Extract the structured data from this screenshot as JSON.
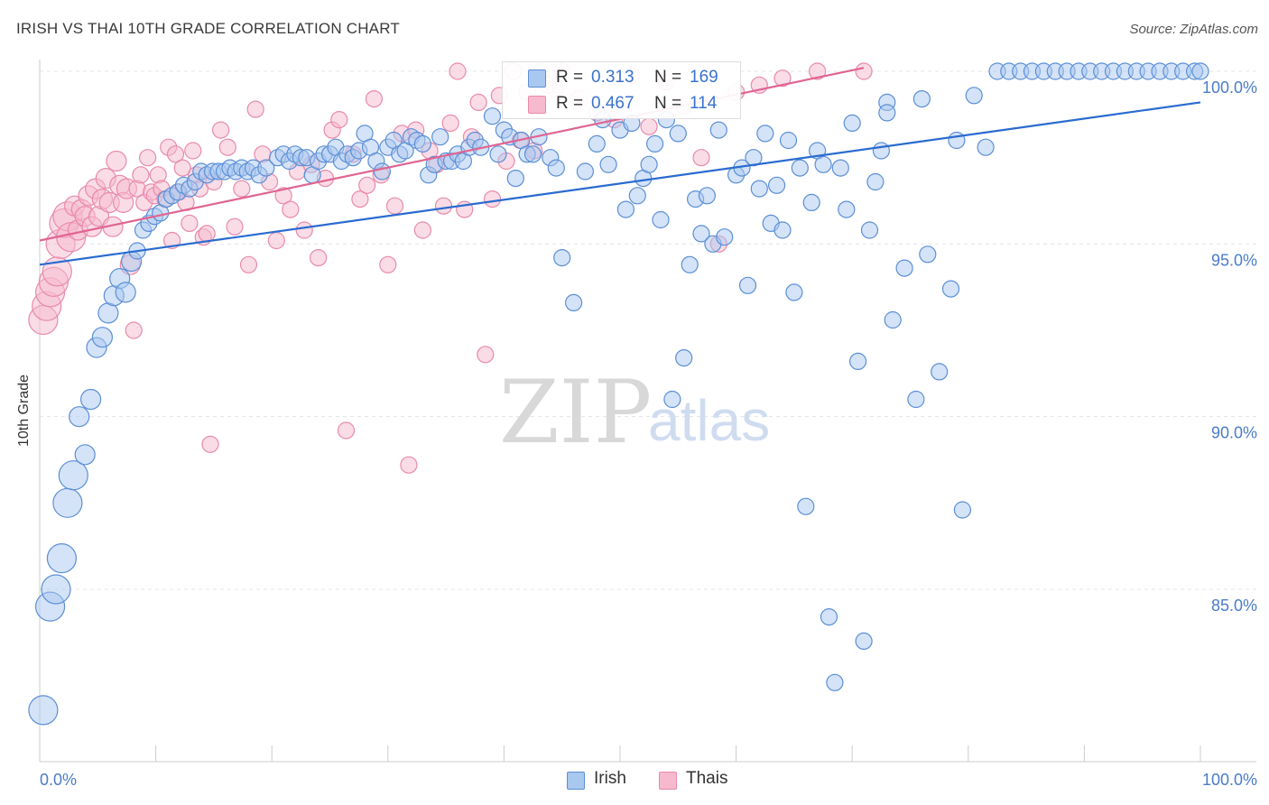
{
  "title": "IRISH VS THAI 10TH GRADE CORRELATION CHART",
  "source": "Source: ZipAtlas.com",
  "watermark": {
    "zip": "ZIP",
    "atlas": "atlas"
  },
  "colors": {
    "irish_fill": "#a9c8f0",
    "irish_stroke": "#5b8fd6",
    "irish_line": "#2a6bd0",
    "thai_fill": "#f6b9cd",
    "thai_stroke": "#e88aab",
    "thai_line": "#e06592",
    "grid": "#e4e4e4",
    "tick_text": "#4a7cc9"
  },
  "legend": {
    "rows": [
      {
        "series": "irish",
        "r_key": "R =",
        "r_value": "0.313",
        "n_key": "N =",
        "n_value": "169"
      },
      {
        "series": "thai",
        "r_key": "R =",
        "r_value": "0.467",
        "n_key": "N =",
        "n_value": "114"
      }
    ]
  },
  "chart_data": {
    "type": "scatter",
    "title": "IRISH VS THAI 10TH GRADE CORRELATION CHART",
    "xlabel": "",
    "ylabel": "10th Grade",
    "xlim": [
      0,
      100
    ],
    "ylim": [
      80.0,
      100.9
    ],
    "x_tick_labels": [
      "0.0%",
      "100.0%"
    ],
    "y_ticks": [
      {
        "value": 85,
        "label": "85.0%"
      },
      {
        "value": 90,
        "label": "90.0%"
      },
      {
        "value": 95,
        "label": "95.0%"
      },
      {
        "value": 100,
        "label": "100.0%"
      }
    ],
    "grid": true,
    "legend_position": "top-center",
    "series": [
      {
        "name": "Irish",
        "trend": {
          "x": [
            0,
            100
          ],
          "y": [
            94.4,
            99.1
          ]
        },
        "points": [
          [
            0.3,
            81.5
          ],
          [
            0.9,
            84.5
          ],
          [
            1.4,
            85.0
          ],
          [
            1.9,
            85.9
          ],
          [
            2.4,
            87.5
          ],
          [
            2.9,
            88.3
          ],
          [
            3.4,
            90.0
          ],
          [
            3.9,
            88.9
          ],
          [
            4.4,
            90.5
          ],
          [
            4.9,
            92.0
          ],
          [
            5.4,
            92.3
          ],
          [
            5.9,
            93.0
          ],
          [
            6.4,
            93.5
          ],
          [
            6.9,
            94.0
          ],
          [
            7.4,
            93.6
          ],
          [
            7.9,
            94.5
          ],
          [
            8.4,
            94.8
          ],
          [
            8.9,
            95.4
          ],
          [
            9.4,
            95.6
          ],
          [
            9.9,
            95.8
          ],
          [
            10.4,
            95.9
          ],
          [
            10.9,
            96.3
          ],
          [
            11.4,
            96.4
          ],
          [
            11.9,
            96.5
          ],
          [
            12.4,
            96.7
          ],
          [
            12.9,
            96.6
          ],
          [
            13.4,
            96.8
          ],
          [
            13.9,
            97.1
          ],
          [
            14.4,
            97.0
          ],
          [
            14.9,
            97.1
          ],
          [
            15.4,
            97.1
          ],
          [
            15.9,
            97.1
          ],
          [
            16.4,
            97.2
          ],
          [
            16.9,
            97.1
          ],
          [
            17.4,
            97.2
          ],
          [
            17.9,
            97.1
          ],
          [
            18.4,
            97.2
          ],
          [
            18.9,
            97.0
          ],
          [
            19.5,
            97.2
          ],
          [
            20.5,
            97.5
          ],
          [
            21.0,
            97.6
          ],
          [
            21.5,
            97.4
          ],
          [
            22.0,
            97.6
          ],
          [
            22.5,
            97.5
          ],
          [
            23.0,
            97.5
          ],
          [
            23.5,
            97.0
          ],
          [
            24.0,
            97.4
          ],
          [
            24.5,
            97.6
          ],
          [
            25.0,
            97.6
          ],
          [
            25.5,
            97.8
          ],
          [
            26.0,
            97.4
          ],
          [
            26.5,
            97.6
          ],
          [
            27.0,
            97.5
          ],
          [
            27.5,
            97.7
          ],
          [
            28.0,
            98.2
          ],
          [
            28.5,
            97.8
          ],
          [
            29.0,
            97.4
          ],
          [
            29.5,
            97.1
          ],
          [
            30.0,
            97.8
          ],
          [
            30.5,
            98.0
          ],
          [
            31.0,
            97.6
          ],
          [
            31.5,
            97.7
          ],
          [
            32.0,
            98.1
          ],
          [
            32.5,
            98.0
          ],
          [
            33.0,
            97.9
          ],
          [
            33.5,
            97.0
          ],
          [
            34.0,
            97.3
          ],
          [
            34.5,
            98.1
          ],
          [
            35.0,
            97.4
          ],
          [
            35.5,
            97.4
          ],
          [
            36.0,
            97.6
          ],
          [
            36.5,
            97.4
          ],
          [
            37.0,
            97.8
          ],
          [
            37.5,
            98.0
          ],
          [
            38.0,
            97.8
          ],
          [
            39.0,
            98.7
          ],
          [
            39.5,
            97.6
          ],
          [
            40.0,
            98.3
          ],
          [
            40.5,
            98.1
          ],
          [
            41.0,
            96.9
          ],
          [
            41.5,
            98.0
          ],
          [
            42.0,
            97.6
          ],
          [
            42.5,
            97.6
          ],
          [
            43.0,
            98.1
          ],
          [
            44.0,
            97.5
          ],
          [
            44.5,
            97.2
          ],
          [
            45.0,
            94.6
          ],
          [
            46.0,
            93.3
          ],
          [
            47.0,
            97.1
          ],
          [
            48.0,
            97.9
          ],
          [
            48.5,
            98.6
          ],
          [
            49.0,
            97.3
          ],
          [
            50.0,
            98.3
          ],
          [
            50.5,
            96.0
          ],
          [
            51.0,
            98.5
          ],
          [
            51.5,
            96.4
          ],
          [
            52.0,
            96.9
          ],
          [
            52.5,
            97.3
          ],
          [
            53.0,
            97.9
          ],
          [
            53.5,
            95.7
          ],
          [
            54.0,
            98.6
          ],
          [
            54.5,
            90.5
          ],
          [
            55.0,
            98.2
          ],
          [
            55.5,
            91.7
          ],
          [
            56.0,
            94.4
          ],
          [
            56.5,
            96.3
          ],
          [
            57.0,
            95.3
          ],
          [
            57.5,
            96.4
          ],
          [
            58.0,
            95.0
          ],
          [
            58.5,
            98.3
          ],
          [
            59.0,
            95.2
          ],
          [
            60.0,
            97.0
          ],
          [
            60.5,
            97.2
          ],
          [
            61.0,
            93.8
          ],
          [
            61.5,
            97.5
          ],
          [
            62.0,
            96.6
          ],
          [
            62.5,
            98.2
          ],
          [
            63.0,
            95.6
          ],
          [
            63.5,
            96.7
          ],
          [
            64.0,
            95.4
          ],
          [
            64.5,
            98.0
          ],
          [
            65.0,
            93.6
          ],
          [
            65.5,
            97.2
          ],
          [
            66.0,
            87.4
          ],
          [
            66.5,
            96.2
          ],
          [
            67.0,
            97.7
          ],
          [
            67.5,
            97.3
          ],
          [
            68.0,
            84.2
          ],
          [
            68.5,
            82.3
          ],
          [
            69.0,
            97.2
          ],
          [
            69.5,
            96.0
          ],
          [
            70.0,
            98.5
          ],
          [
            70.5,
            91.6
          ],
          [
            71.0,
            83.5
          ],
          [
            71.5,
            95.4
          ],
          [
            72.0,
            96.8
          ],
          [
            72.5,
            97.7
          ],
          [
            73.0,
            99.1
          ],
          [
            73.5,
            92.8
          ],
          [
            74.5,
            94.3
          ],
          [
            75.5,
            90.5
          ],
          [
            76.5,
            94.7
          ],
          [
            77.5,
            91.3
          ],
          [
            78.5,
            93.7
          ],
          [
            79.5,
            87.3
          ],
          [
            80.5,
            99.3
          ],
          [
            81.5,
            97.8
          ],
          [
            82.5,
            100.0
          ],
          [
            83.5,
            100.0
          ],
          [
            84.5,
            100.0
          ],
          [
            85.5,
            100.0
          ],
          [
            86.5,
            100.0
          ],
          [
            87.5,
            100.0
          ],
          [
            88.5,
            100.0
          ],
          [
            89.5,
            100.0
          ],
          [
            90.5,
            100.0
          ],
          [
            91.5,
            100.0
          ],
          [
            92.5,
            100.0
          ],
          [
            93.5,
            100.0
          ],
          [
            94.5,
            100.0
          ],
          [
            95.5,
            100.0
          ],
          [
            96.5,
            100.0
          ],
          [
            97.5,
            100.0
          ],
          [
            98.5,
            100.0
          ],
          [
            99.5,
            100.0
          ],
          [
            100.0,
            100.0
          ],
          [
            76.0,
            99.2
          ],
          [
            73.0,
            98.8
          ],
          [
            79.0,
            98.0
          ]
        ]
      },
      {
        "name": "Thais",
        "trend": {
          "x": [
            0,
            71
          ],
          "y": [
            95.1,
            100.1
          ]
        },
        "points": [
          [
            0.3,
            92.8
          ],
          [
            0.6,
            93.2
          ],
          [
            0.9,
            93.6
          ],
          [
            1.2,
            93.9
          ],
          [
            1.5,
            94.2
          ],
          [
            1.8,
            95.0
          ],
          [
            2.1,
            95.6
          ],
          [
            2.4,
            95.8
          ],
          [
            2.7,
            95.2
          ],
          [
            3.0,
            96.1
          ],
          [
            3.3,
            95.4
          ],
          [
            3.6,
            96.0
          ],
          [
            3.9,
            95.8
          ],
          [
            4.2,
            96.4
          ],
          [
            4.5,
            95.5
          ],
          [
            4.8,
            96.6
          ],
          [
            5.1,
            95.8
          ],
          [
            5.4,
            96.3
          ],
          [
            5.7,
            96.9
          ],
          [
            6.0,
            96.2
          ],
          [
            6.3,
            95.5
          ],
          [
            6.6,
            97.4
          ],
          [
            6.9,
            96.7
          ],
          [
            7.2,
            96.2
          ],
          [
            7.5,
            96.6
          ],
          [
            7.8,
            94.4
          ],
          [
            8.1,
            92.5
          ],
          [
            8.4,
            96.6
          ],
          [
            8.7,
            97.0
          ],
          [
            9.0,
            96.2
          ],
          [
            9.3,
            97.5
          ],
          [
            9.6,
            96.5
          ],
          [
            9.9,
            96.4
          ],
          [
            10.2,
            97.0
          ],
          [
            10.5,
            96.6
          ],
          [
            10.8,
            96.3
          ],
          [
            11.1,
            97.8
          ],
          [
            11.4,
            95.1
          ],
          [
            11.7,
            97.6
          ],
          [
            12.0,
            96.5
          ],
          [
            12.3,
            97.2
          ],
          [
            12.6,
            96.2
          ],
          [
            12.9,
            95.6
          ],
          [
            13.2,
            97.7
          ],
          [
            13.5,
            97.0
          ],
          [
            13.8,
            96.6
          ],
          [
            14.1,
            95.2
          ],
          [
            14.4,
            95.3
          ],
          [
            14.7,
            89.2
          ],
          [
            15.0,
            96.8
          ],
          [
            15.6,
            98.3
          ],
          [
            16.2,
            97.8
          ],
          [
            16.8,
            95.5
          ],
          [
            17.4,
            96.6
          ],
          [
            18.0,
            94.4
          ],
          [
            18.6,
            98.9
          ],
          [
            19.2,
            97.6
          ],
          [
            19.8,
            96.8
          ],
          [
            20.4,
            95.1
          ],
          [
            21.0,
            96.4
          ],
          [
            21.6,
            96.0
          ],
          [
            22.2,
            97.1
          ],
          [
            22.8,
            95.4
          ],
          [
            23.4,
            97.3
          ],
          [
            24.0,
            94.6
          ],
          [
            24.6,
            96.9
          ],
          [
            25.2,
            98.3
          ],
          [
            25.8,
            98.6
          ],
          [
            26.4,
            89.6
          ],
          [
            27.0,
            97.6
          ],
          [
            27.6,
            96.3
          ],
          [
            28.2,
            96.7
          ],
          [
            28.8,
            99.2
          ],
          [
            29.4,
            97.0
          ],
          [
            30.0,
            94.4
          ],
          [
            30.6,
            96.1
          ],
          [
            31.2,
            98.2
          ],
          [
            31.8,
            88.6
          ],
          [
            32.4,
            98.3
          ],
          [
            33.0,
            95.4
          ],
          [
            33.6,
            97.7
          ],
          [
            34.2,
            97.3
          ],
          [
            34.8,
            96.1
          ],
          [
            35.4,
            98.5
          ],
          [
            36.0,
            100.0
          ],
          [
            36.6,
            96.0
          ],
          [
            37.2,
            98.1
          ],
          [
            37.8,
            99.1
          ],
          [
            38.4,
            91.8
          ],
          [
            39.0,
            96.3
          ],
          [
            39.6,
            99.3
          ],
          [
            40.2,
            97.4
          ],
          [
            40.8,
            100.0
          ],
          [
            41.4,
            98.0
          ],
          [
            42.0,
            99.4
          ],
          [
            42.6,
            97.7
          ],
          [
            43.2,
            100.0
          ],
          [
            43.8,
            99.6
          ],
          [
            44.4,
            99.5
          ],
          [
            45.0,
            100.0
          ],
          [
            46.5,
            99.2
          ],
          [
            48.0,
            98.8
          ],
          [
            49.5,
            98.6
          ],
          [
            51.0,
            99.9
          ],
          [
            52.5,
            98.4
          ],
          [
            54.0,
            99.7
          ],
          [
            55.5,
            99.0
          ],
          [
            57.0,
            97.5
          ],
          [
            58.5,
            95.0
          ],
          [
            60.0,
            99.4
          ],
          [
            62.0,
            99.6
          ],
          [
            64.0,
            99.8
          ],
          [
            67.0,
            100.0
          ],
          [
            71.0,
            100.0
          ]
        ]
      }
    ]
  }
}
